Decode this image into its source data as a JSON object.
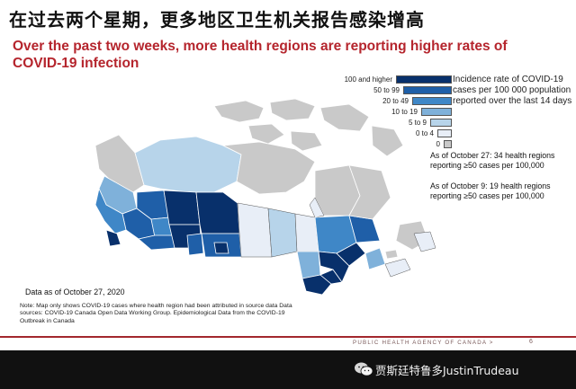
{
  "title_zh": "在过去两个星期，更多地区卫生机关报告感染增高",
  "title_en": "Over the past two weeks, more health regions are reporting higher rates of COVID-19 infection",
  "legend": {
    "items": [
      {
        "label": "100 and higher",
        "color": "#08306b"
      },
      {
        "label": "50 to 99",
        "color": "#1f5fa8"
      },
      {
        "label": "20 to 49",
        "color": "#3f87c7"
      },
      {
        "label": "10 to 19",
        "color": "#7fb1da"
      },
      {
        "label": "5 to 9",
        "color": "#b7d4ea"
      },
      {
        "label": "0 to 4",
        "color": "#e8eef7"
      },
      {
        "label": "0",
        "color": "#c9c9c9"
      }
    ],
    "note": "Incidence rate of COVID-19 cases per 100 000 population reported over the last 14 days"
  },
  "stats": {
    "oct27": "As of October 27: 34 health regions reporting ≥50 cases per 100,000",
    "oct9": "As of October 9: 19 health regions reporting ≥50 cases per 100,000"
  },
  "data_date": "Data as of October 27, 2020",
  "note_text": "Note: Map only shows COVID-19 cases where health region had been attributed in source data Data sources: COVID-19 Canada Open Data Working Group. Epidemiological Data from the COVID-19 Outbreak in Canada",
  "footer": {
    "agency": "PUBLIC HEALTH AGENCY OF CANADA >",
    "page": "6"
  },
  "watermark": "贾斯廷特鲁多JustinTrudeau",
  "colors": {
    "accent_red": "#b5252d",
    "footer_line": "#a3272d",
    "map_border": "#ffffff"
  }
}
